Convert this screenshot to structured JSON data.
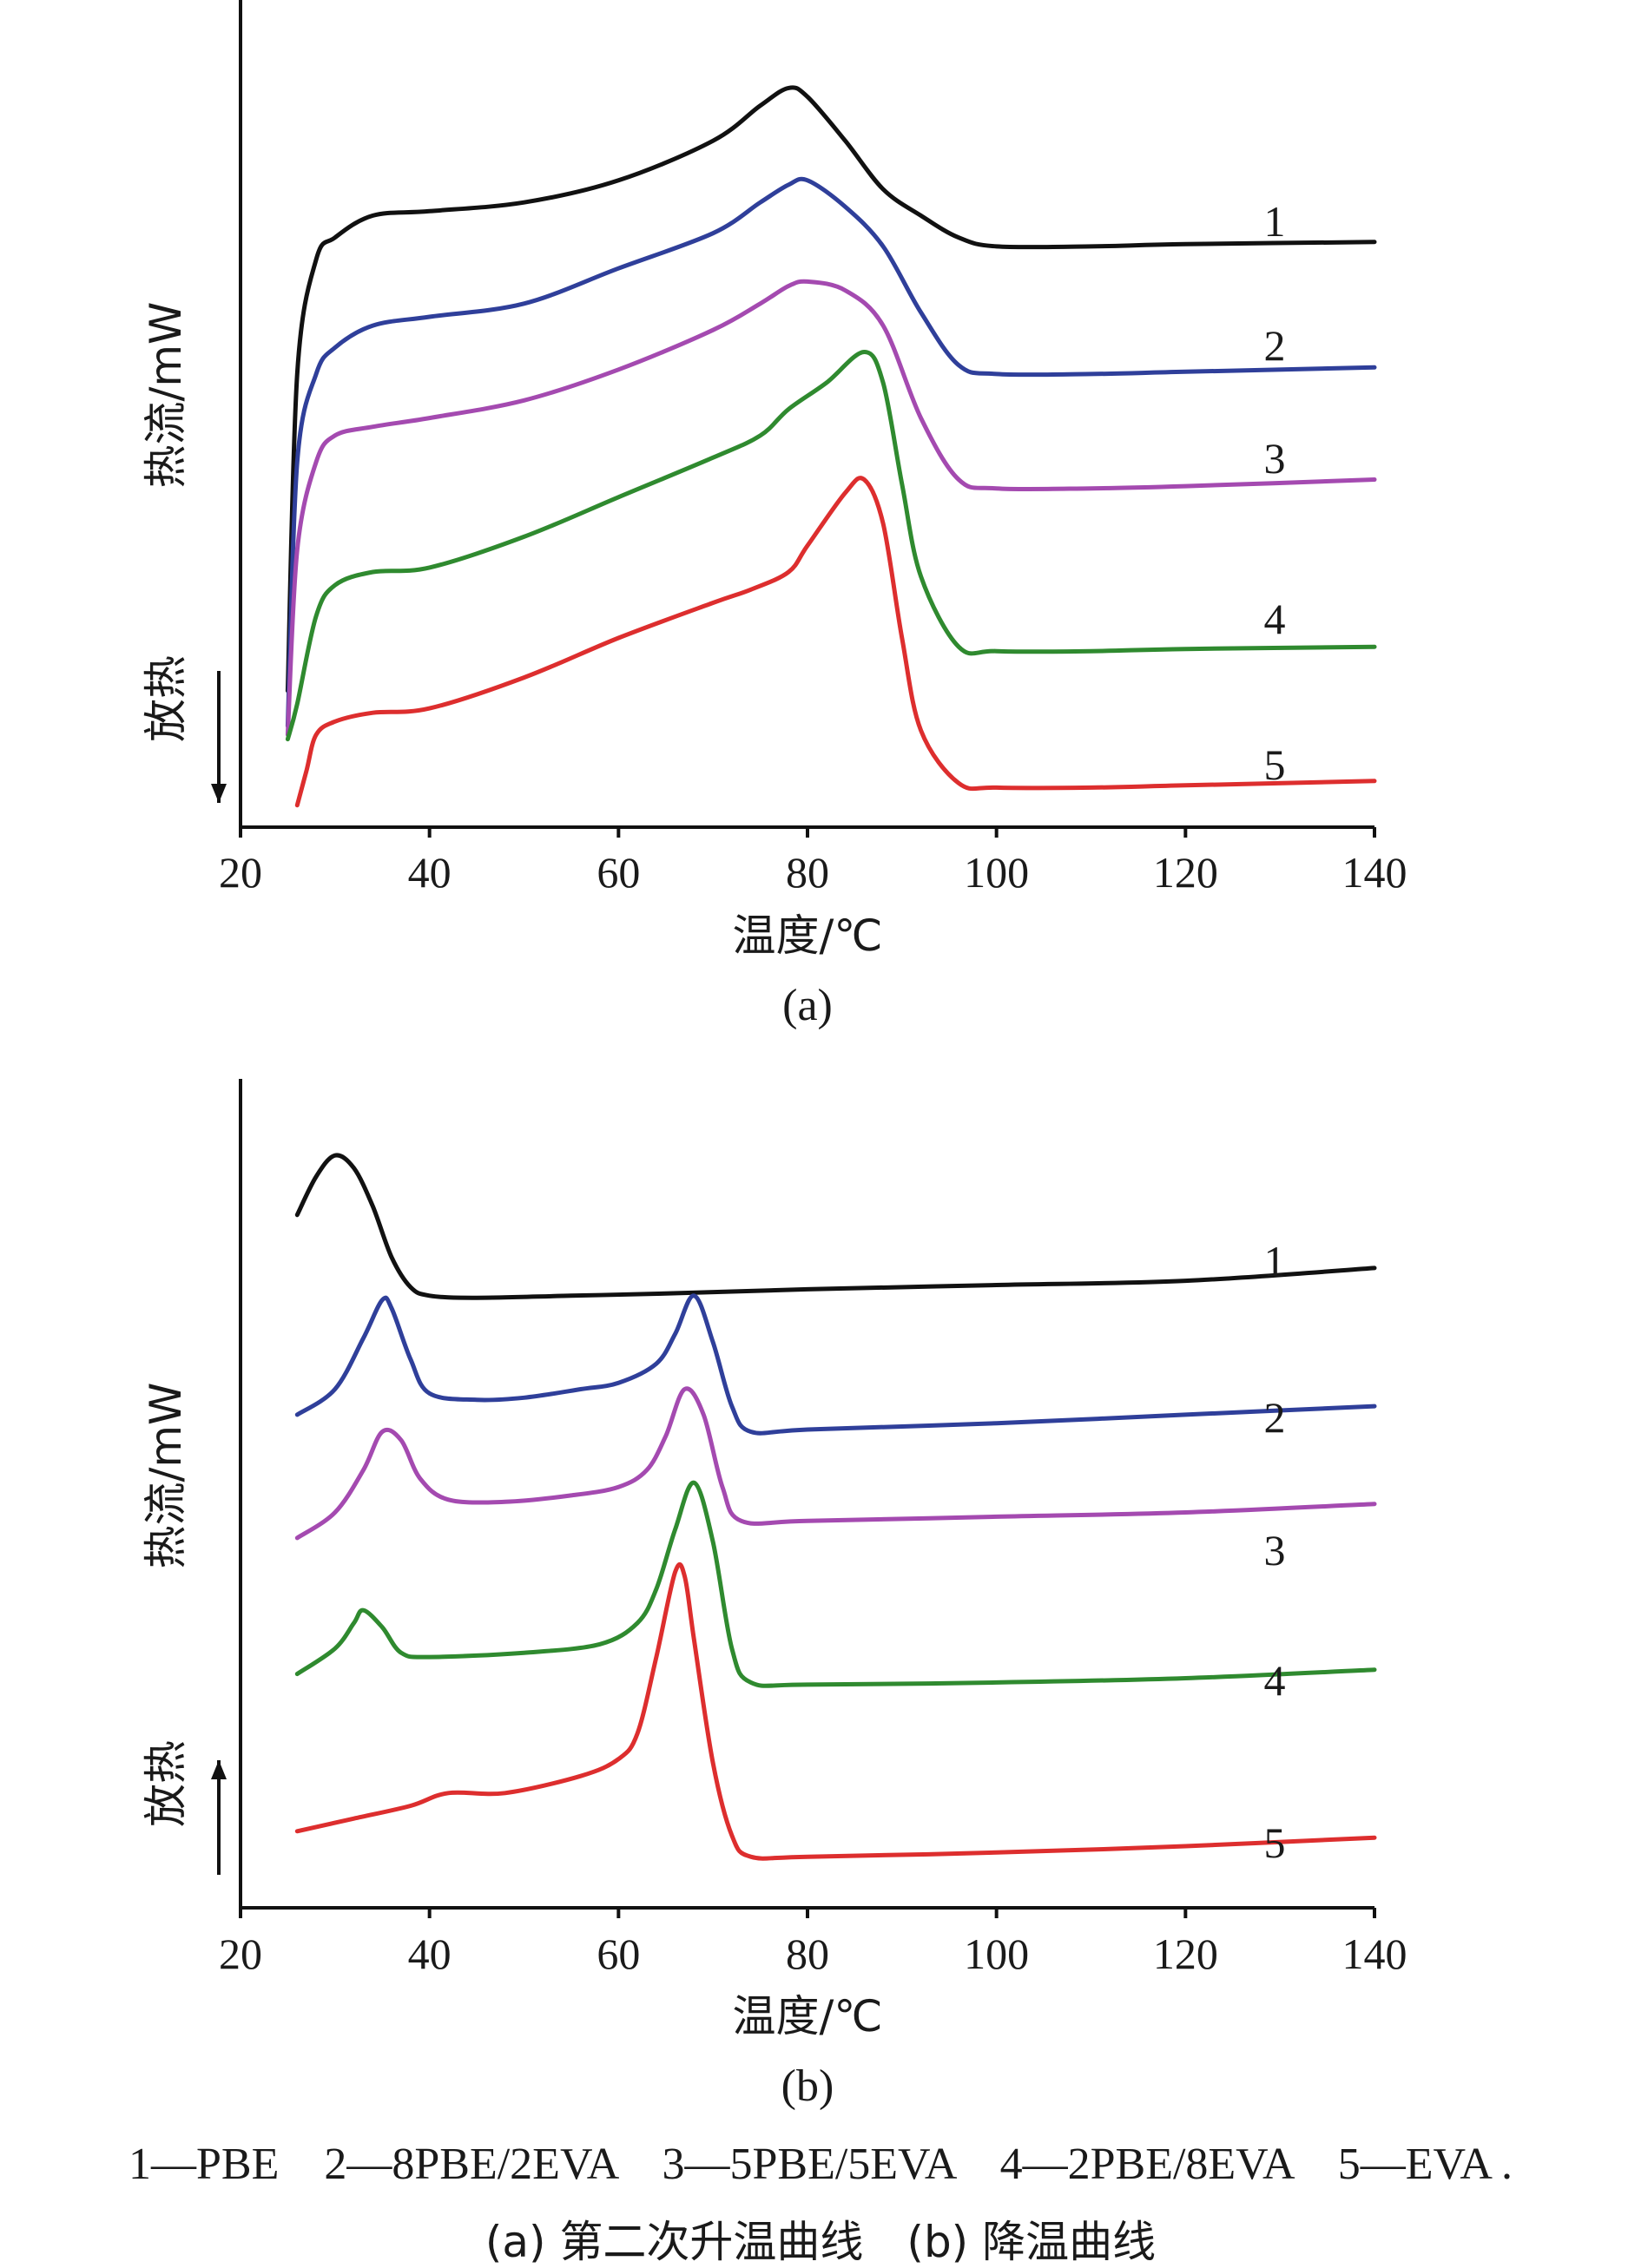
{
  "chart_data": [
    {
      "type": "line",
      "panel_label": "(a)",
      "xlabel": "温度/℃",
      "ylabel": "热流/mW",
      "direction_label": "放热",
      "direction": "down",
      "xlim": [
        20,
        140
      ],
      "xticks": [
        "20",
        "40",
        "60",
        "80",
        "100",
        "120",
        "140"
      ],
      "series": [
        {
          "label": "1",
          "color": "#111111",
          "points": [
            [
              25,
              -1.2
            ],
            [
              26,
              6.0
            ],
            [
              28,
              8.6
            ],
            [
              30,
              9.1
            ],
            [
              34,
              9.6
            ],
            [
              40,
              9.7
            ],
            [
              50,
              9.9
            ],
            [
              60,
              10.4
            ],
            [
              70,
              11.3
            ],
            [
              75,
              12.1
            ],
            [
              78,
              12.5
            ],
            [
              80,
              12.3
            ],
            [
              84,
              11.3
            ],
            [
              88,
              10.2
            ],
            [
              92,
              9.6
            ],
            [
              96,
              9.1
            ],
            [
              100,
              8.9
            ],
            [
              110,
              8.9
            ],
            [
              120,
              8.95
            ],
            [
              140,
              9.0
            ]
          ]
        },
        {
          "label": "2",
          "color": "#2f3f9a",
          "points": [
            [
              25,
              -2.0
            ],
            [
              26,
              4.0
            ],
            [
              28,
              6.0
            ],
            [
              30,
              6.6
            ],
            [
              34,
              7.1
            ],
            [
              40,
              7.3
            ],
            [
              50,
              7.6
            ],
            [
              60,
              8.4
            ],
            [
              70,
              9.2
            ],
            [
              75,
              9.9
            ],
            [
              78,
              10.3
            ],
            [
              80,
              10.4
            ],
            [
              84,
              9.8
            ],
            [
              88,
              8.9
            ],
            [
              92,
              7.4
            ],
            [
              96,
              6.2
            ],
            [
              100,
              6.0
            ],
            [
              110,
              6.0
            ],
            [
              120,
              6.05
            ],
            [
              140,
              6.15
            ]
          ]
        },
        {
          "label": "3",
          "color": "#a44ab0",
          "points": [
            [
              25,
              -2.2
            ],
            [
              26,
              2.0
            ],
            [
              28,
              4.0
            ],
            [
              30,
              4.6
            ],
            [
              34,
              4.8
            ],
            [
              40,
              5.0
            ],
            [
              50,
              5.4
            ],
            [
              60,
              6.1
            ],
            [
              70,
              7.0
            ],
            [
              75,
              7.6
            ],
            [
              78,
              8.0
            ],
            [
              80,
              8.1
            ],
            [
              84,
              7.9
            ],
            [
              88,
              7.1
            ],
            [
              92,
              5.0
            ],
            [
              96,
              3.6
            ],
            [
              100,
              3.4
            ],
            [
              110,
              3.4
            ],
            [
              120,
              3.45
            ],
            [
              140,
              3.6
            ]
          ]
        },
        {
          "label": "4",
          "color": "#2f8a2f",
          "points": [
            [
              25,
              -2.3
            ],
            [
              26,
              -1.5
            ],
            [
              28,
              0.5
            ],
            [
              30,
              1.2
            ],
            [
              34,
              1.5
            ],
            [
              40,
              1.6
            ],
            [
              50,
              2.3
            ],
            [
              60,
              3.2
            ],
            [
              70,
              4.1
            ],
            [
              75,
              4.6
            ],
            [
              78,
              5.2
            ],
            [
              82,
              5.8
            ],
            [
              86,
              6.5
            ],
            [
              88,
              5.8
            ],
            [
              90,
              3.5
            ],
            [
              92,
              1.4
            ],
            [
              96,
              -0.2
            ],
            [
              100,
              -0.3
            ],
            [
              110,
              -0.3
            ],
            [
              120,
              -0.25
            ],
            [
              140,
              -0.2
            ]
          ]
        },
        {
          "label": "5",
          "color": "#dd2e2e",
          "points": [
            [
              26,
              -3.8
            ],
            [
              27,
              -3.0
            ],
            [
              28,
              -2.2
            ],
            [
              30,
              -1.9
            ],
            [
              34,
              -1.7
            ],
            [
              40,
              -1.6
            ],
            [
              50,
              -0.9
            ],
            [
              60,
              0.0
            ],
            [
              70,
              0.8
            ],
            [
              74,
              1.1
            ],
            [
              78,
              1.5
            ],
            [
              80,
              2.1
            ],
            [
              84,
              3.3
            ],
            [
              86,
              3.6
            ],
            [
              88,
              2.6
            ],
            [
              90,
              0.0
            ],
            [
              92,
              -2.1
            ],
            [
              96,
              -3.3
            ],
            [
              100,
              -3.4
            ],
            [
              110,
              -3.4
            ],
            [
              120,
              -3.35
            ],
            [
              140,
              -3.25
            ]
          ]
        }
      ]
    },
    {
      "type": "line",
      "panel_label": "(b)",
      "xlabel": "温度/℃",
      "ylabel": "热流/mW",
      "direction_label": "放热",
      "direction": "up",
      "xlim": [
        20,
        140
      ],
      "xticks": [
        "20",
        "40",
        "60",
        "80",
        "100",
        "120",
        "140"
      ],
      "series": [
        {
          "label": "1",
          "color": "#111111",
          "points": [
            [
              26,
              5.8
            ],
            [
              28,
              6.7
            ],
            [
              30,
              7.2
            ],
            [
              32,
              6.9
            ],
            [
              34,
              6.0
            ],
            [
              36,
              4.8
            ],
            [
              38,
              4.1
            ],
            [
              40,
              3.9
            ],
            [
              45,
              3.85
            ],
            [
              55,
              3.9
            ],
            [
              65,
              3.95
            ],
            [
              80,
              4.05
            ],
            [
              100,
              4.15
            ],
            [
              120,
              4.25
            ],
            [
              140,
              4.55
            ]
          ]
        },
        {
          "label": "2",
          "color": "#2f3f9a",
          "points": [
            [
              26,
              1.1
            ],
            [
              30,
              1.7
            ],
            [
              33,
              2.9
            ],
            [
              35,
              3.8
            ],
            [
              36,
              3.6
            ],
            [
              38,
              2.4
            ],
            [
              40,
              1.6
            ],
            [
              45,
              1.45
            ],
            [
              50,
              1.5
            ],
            [
              56,
              1.7
            ],
            [
              60,
              1.85
            ],
            [
              64,
              2.3
            ],
            [
              66,
              3.0
            ],
            [
              68,
              3.9
            ],
            [
              70,
              2.8
            ],
            [
              72,
              1.3
            ],
            [
              74,
              0.7
            ],
            [
              80,
              0.75
            ],
            [
              100,
              0.9
            ],
            [
              120,
              1.1
            ],
            [
              140,
              1.3
            ]
          ]
        },
        {
          "label": "3",
          "color": "#a44ab0",
          "points": [
            [
              26,
              -1.8
            ],
            [
              30,
              -1.2
            ],
            [
              33,
              -0.2
            ],
            [
              35,
              0.7
            ],
            [
              37,
              0.5
            ],
            [
              39,
              -0.4
            ],
            [
              42,
              -0.9
            ],
            [
              48,
              -0.95
            ],
            [
              55,
              -0.8
            ],
            [
              60,
              -0.6
            ],
            [
              63,
              -0.2
            ],
            [
              65,
              0.6
            ],
            [
              67,
              1.7
            ],
            [
              69,
              1.1
            ],
            [
              71,
              -0.6
            ],
            [
              73,
              -1.4
            ],
            [
              80,
              -1.4
            ],
            [
              100,
              -1.3
            ],
            [
              120,
              -1.2
            ],
            [
              140,
              -1.0
            ]
          ]
        },
        {
          "label": "4",
          "color": "#2f8a2f",
          "points": [
            [
              26,
              -5.0
            ],
            [
              30,
              -4.4
            ],
            [
              32,
              -3.8
            ],
            [
              33,
              -3.5
            ],
            [
              35,
              -3.9
            ],
            [
              37,
              -4.5
            ],
            [
              40,
              -4.6
            ],
            [
              50,
              -4.5
            ],
            [
              58,
              -4.3
            ],
            [
              62,
              -3.8
            ],
            [
              64,
              -3.0
            ],
            [
              66,
              -1.6
            ],
            [
              68,
              -0.5
            ],
            [
              70,
              -1.9
            ],
            [
              72,
              -4.4
            ],
            [
              74,
              -5.2
            ],
            [
              80,
              -5.25
            ],
            [
              100,
              -5.2
            ],
            [
              120,
              -5.1
            ],
            [
              140,
              -4.9
            ]
          ]
        },
        {
          "label": "5",
          "color": "#dd2e2e",
          "points": [
            [
              26,
              -8.7
            ],
            [
              32,
              -8.4
            ],
            [
              38,
              -8.1
            ],
            [
              42,
              -7.8
            ],
            [
              48,
              -7.8
            ],
            [
              56,
              -7.4
            ],
            [
              60,
              -7.0
            ],
            [
              62,
              -6.4
            ],
            [
              64,
              -4.6
            ],
            [
              66,
              -2.6
            ],
            [
              67,
              -2.7
            ],
            [
              68,
              -4.2
            ],
            [
              70,
              -7.1
            ],
            [
              72,
              -8.8
            ],
            [
              74,
              -9.3
            ],
            [
              80,
              -9.3
            ],
            [
              100,
              -9.2
            ],
            [
              120,
              -9.05
            ],
            [
              140,
              -8.85
            ]
          ]
        }
      ]
    }
  ],
  "legend_text": "1—PBE　2—8PBE/2EVA　3—5PBE/5EVA　4—2PBE/8EVA　5—EVA .",
  "caption_text": "(a) 第二次升温曲线　(b) 降温曲线"
}
